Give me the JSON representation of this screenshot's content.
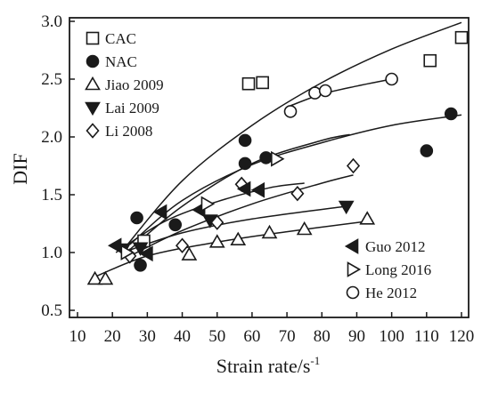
{
  "chart_data": {
    "type": "scatter",
    "xlabel": "Strain rate/s",
    "xlabel_sup": "-1",
    "ylabel": "DIF",
    "xlim": [
      10,
      120
    ],
    "ylim": [
      0.5,
      3.0
    ],
    "x_ticks": [
      "10",
      "20",
      "30",
      "40",
      "50",
      "60",
      "70",
      "80",
      "90",
      "100",
      "110",
      "120"
    ],
    "y_ticks": [
      "0.5",
      "1.0",
      "1.5",
      "2.0",
      "2.5",
      "3.0"
    ],
    "grid": false,
    "legend_placement": [
      "top-left",
      "bottom-right"
    ],
    "colors": {
      "marker": "#1a1a1a",
      "line": "#1a1a1a",
      "background": "#ffffff"
    },
    "series": [
      {
        "name": "CAC",
        "marker": "square-open",
        "x": [
          29,
          59,
          63,
          111,
          120
        ],
        "y": [
          1.1,
          2.46,
          2.47,
          2.66,
          2.86
        ],
        "fit": {
          "x": [
            23,
            40,
            60,
            80,
            100,
            120
          ],
          "y": [
            1.02,
            1.62,
            2.1,
            2.47,
            2.76,
            2.99
          ]
        }
      },
      {
        "name": "NAC",
        "marker": "circle-filled",
        "x": [
          27,
          28,
          38,
          58,
          58,
          64,
          110,
          117
        ],
        "y": [
          1.3,
          0.89,
          1.24,
          1.97,
          1.77,
          1.82,
          1.88,
          2.2
        ],
        "fit": {
          "x": [
            25,
            40,
            60,
            80,
            100,
            120
          ],
          "y": [
            1.07,
            1.45,
            1.76,
            1.95,
            2.1,
            2.19
          ]
        }
      },
      {
        "name": "Jiao 2009",
        "marker": "triangle-up-open",
        "x": [
          15,
          18,
          42,
          50,
          56,
          65,
          75,
          93
        ],
        "y": [
          0.77,
          0.77,
          0.98,
          1.09,
          1.11,
          1.17,
          1.2,
          1.29
        ],
        "fit": {
          "x": [
            15,
            30,
            50,
            70,
            93
          ],
          "y": [
            0.79,
            0.97,
            1.09,
            1.18,
            1.27
          ]
        }
      },
      {
        "name": "Lai 2009",
        "marker": "triangle-down-filled",
        "x": [
          23,
          28,
          48,
          87
        ],
        "y": [
          1.03,
          1.04,
          1.28,
          1.4
        ],
        "fit": {
          "x": [
            23,
            40,
            60,
            87
          ],
          "y": [
            1.0,
            1.17,
            1.29,
            1.4
          ]
        }
      },
      {
        "name": "Li 2008",
        "marker": "diamond-open",
        "x": [
          25,
          40,
          50,
          57,
          73,
          89
        ],
        "y": [
          0.97,
          1.06,
          1.26,
          1.59,
          1.51,
          1.75
        ],
        "fit": {
          "x": [
            25,
            40,
            60,
            80,
            89
          ],
          "y": [
            0.97,
            1.19,
            1.42,
            1.6,
            1.67
          ]
        }
      },
      {
        "name": "Guo 2012",
        "marker": "triangle-left-filled",
        "x": [
          21,
          30,
          34,
          45,
          58,
          62
        ],
        "y": [
          1.06,
          0.99,
          1.35,
          1.37,
          1.55,
          1.54
        ],
        "fit": {
          "x": [
            21,
            35,
            50,
            65,
            75
          ],
          "y": [
            1.0,
            1.27,
            1.44,
            1.56,
            1.6
          ]
        }
      },
      {
        "name": "Long 2016",
        "marker": "triangle-right-open",
        "x": [
          24,
          47,
          67
        ],
        "y": [
          1.0,
          1.42,
          1.81
        ],
        "fit": {
          "x": [
            24,
            40,
            60,
            80,
            88
          ],
          "y": [
            1.0,
            1.4,
            1.77,
            1.97,
            2.02
          ]
        }
      },
      {
        "name": "He 2012",
        "marker": "circle-open",
        "x": [
          71,
          78,
          81,
          100
        ],
        "y": [
          2.22,
          2.38,
          2.4,
          2.5
        ],
        "fit": {
          "x": [
            71,
            80,
            90,
            100
          ],
          "y": [
            2.27,
            2.37,
            2.44,
            2.5
          ]
        }
      }
    ],
    "legend_groups": [
      [
        "CAC",
        "NAC",
        "Jiao 2009",
        "Lai 2009",
        "Li 2008"
      ],
      [
        "Guo 2012",
        "Long 2016",
        "He 2012"
      ]
    ]
  }
}
